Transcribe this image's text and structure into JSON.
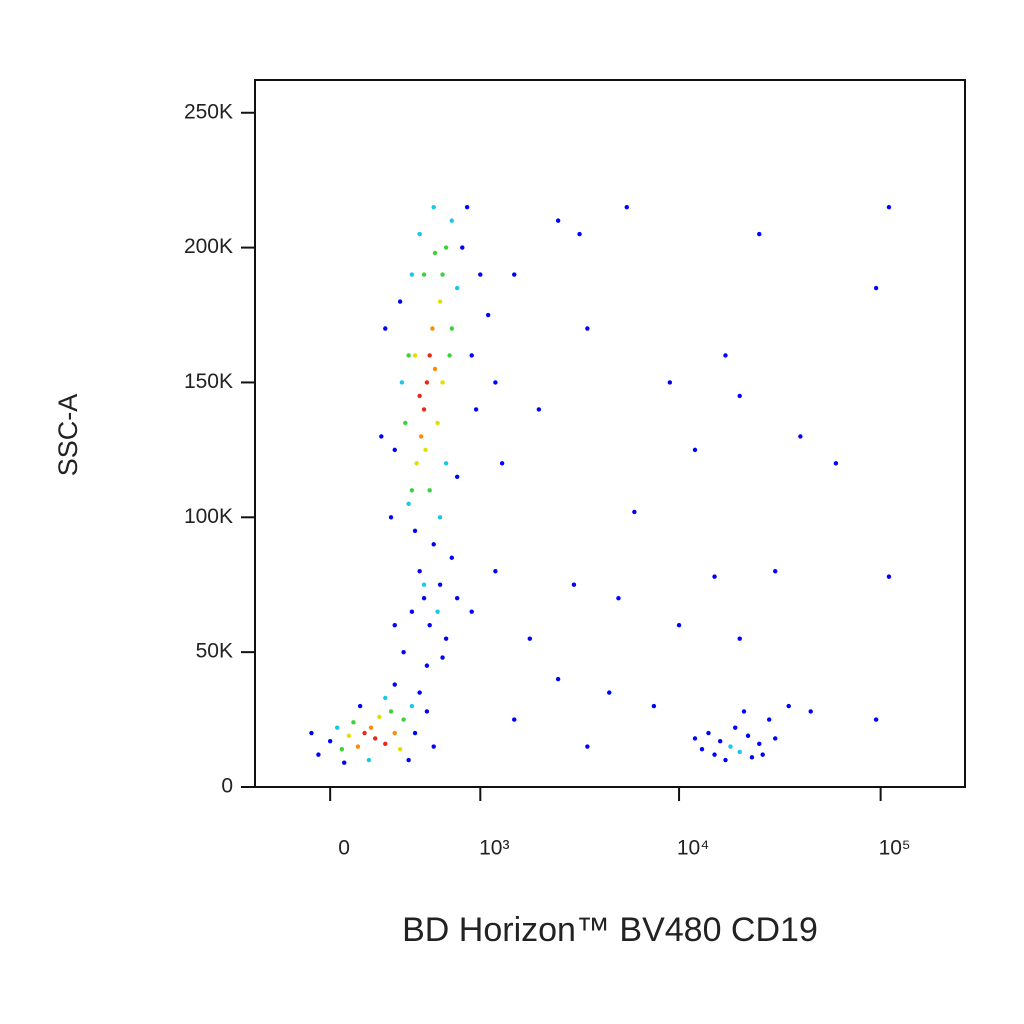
{
  "chart_data": {
    "type": "scatter",
    "x_label": "BD Horizon™ BV480 CD19",
    "y_label": "SSC-A",
    "xscale": "biexponential",
    "xlim": [
      -360,
      262144
    ],
    "ylim": [
      0,
      262144
    ],
    "xticks": [
      0,
      {
        "value": 1000,
        "label": "10³"
      },
      {
        "value": 10000,
        "label": "10⁴"
      },
      {
        "value": 100000,
        "label": "10⁵"
      }
    ],
    "yticks": [
      0,
      {
        "value": 50000,
        "label": "50K"
      },
      {
        "value": 100000,
        "label": "100K"
      },
      {
        "value": 150000,
        "label": "150K"
      },
      {
        "value": 200000,
        "label": "200K"
      },
      {
        "value": 250000,
        "label": "250K"
      }
    ],
    "x": [
      500,
      480,
      520,
      460,
      540,
      450,
      560,
      490,
      600,
      430,
      620,
      400,
      650,
      380,
      700,
      360,
      580,
      620,
      420,
      700,
      340,
      750,
      300,
      800,
      850,
      550,
      450,
      900,
      280,
      950,
      250,
      1000,
      650,
      520,
      330,
      1100,
      1200,
      230,
      600,
      750,
      480,
      560,
      400,
      680,
      380,
      480,
      520,
      450,
      600,
      400,
      550,
      650,
      350,
      700,
      500,
      420,
      580,
      480,
      750,
      300,
      620,
      900,
      1200,
      200,
      150,
      250,
      180,
      120,
      300,
      220,
      80,
      330,
      100,
      280,
      50,
      350,
      400,
      30,
      170,
      250,
      0,
      -50,
      420,
      450,
      130,
      -80,
      380,
      300,
      500,
      550,
      60,
      18000,
      20000,
      16000,
      22000,
      15000,
      25000,
      19000,
      13000,
      28000,
      17000,
      23000,
      14000,
      30000,
      21000,
      12000,
      35000,
      26000,
      2500,
      3200,
      5500,
      1500,
      3500,
      25000,
      110000,
      95000,
      17000,
      20000,
      12000,
      40000,
      60000,
      2000,
      1300,
      9000,
      6000,
      3000,
      5000,
      15000,
      30000,
      110000,
      2500,
      4500,
      7500,
      1500,
      3500,
      10000,
      45000,
      95000,
      1800,
      20000
    ],
    "values": [
      150000,
      140000,
      160000,
      130000,
      170000,
      145000,
      155000,
      125000,
      180000,
      120000,
      190000,
      110000,
      200000,
      105000,
      210000,
      135000,
      135000,
      150000,
      160000,
      170000,
      150000,
      185000,
      125000,
      200000,
      215000,
      215000,
      205000,
      160000,
      100000,
      140000,
      170000,
      190000,
      120000,
      110000,
      180000,
      175000,
      150000,
      130000,
      100000,
      115000,
      190000,
      198000,
      190000,
      160000,
      160000,
      70000,
      60000,
      80000,
      75000,
      65000,
      90000,
      55000,
      50000,
      85000,
      45000,
      95000,
      65000,
      75000,
      70000,
      60000,
      48000,
      65000,
      80000,
      18000,
      20000,
      16000,
      22000,
      15000,
      20000,
      26000,
      19000,
      14000,
      24000,
      28000,
      14000,
      25000,
      30000,
      22000,
      10000,
      33000,
      17000,
      12000,
      20000,
      35000,
      30000,
      20000,
      10000,
      38000,
      28000,
      15000,
      9000,
      15000,
      13000,
      17000,
      19000,
      12000,
      16000,
      22000,
      14000,
      25000,
      10000,
      11000,
      20000,
      18000,
      28000,
      18000,
      30000,
      12000,
      210000,
      205000,
      215000,
      190000,
      170000,
      205000,
      215000,
      185000,
      160000,
      145000,
      125000,
      130000,
      120000,
      140000,
      120000,
      150000,
      102000,
      75000,
      70000,
      78000,
      80000,
      78000,
      40000,
      35000,
      30000,
      25000,
      15000,
      60000,
      28000,
      25000,
      55000,
      55000
    ],
    "colors": [
      "#e8281a",
      "#e8281a",
      "#e8281a",
      "#ff8c00",
      "#ff8c00",
      "#e8281a",
      "#ff8c00",
      "#e0e000",
      "#e0e000",
      "#e0e000",
      "#3dd13d",
      "#3dd13d",
      "#3dd13d",
      "#18c8e8",
      "#18c8e8",
      "#3dd13d",
      "#e0e000",
      "#e0e000",
      "#e0e000",
      "#3dd13d",
      "#18c8e8",
      "#18c8e8",
      "#0000ff",
      "#0000ff",
      "#0000ff",
      "#18c8e8",
      "#18c8e8",
      "#0000ff",
      "#0000ff",
      "#0000ff",
      "#0000ff",
      "#0000ff",
      "#18c8e8",
      "#3dd13d",
      "#0000ff",
      "#0000ff",
      "#0000ff",
      "#0000ff",
      "#18c8e8",
      "#0000ff",
      "#3dd13d",
      "#3dd13d",
      "#18c8e8",
      "#3dd13d",
      "#3dd13d",
      "#0000ff",
      "#0000ff",
      "#0000ff",
      "#0000ff",
      "#0000ff",
      "#0000ff",
      "#0000ff",
      "#0000ff",
      "#0000ff",
      "#0000ff",
      "#0000ff",
      "#18c8e8",
      "#18c8e8",
      "#0000ff",
      "#0000ff",
      "#0000ff",
      "#0000ff",
      "#0000ff",
      "#e8281a",
      "#e8281a",
      "#e8281a",
      "#ff8c00",
      "#ff8c00",
      "#ff8c00",
      "#e0e000",
      "#e0e000",
      "#e0e000",
      "#3dd13d",
      "#3dd13d",
      "#3dd13d",
      "#3dd13d",
      "#18c8e8",
      "#18c8e8",
      "#18c8e8",
      "#18c8e8",
      "#0000ff",
      "#0000ff",
      "#0000ff",
      "#0000ff",
      "#0000ff",
      "#0000ff",
      "#0000ff",
      "#0000ff",
      "#0000ff",
      "#0000ff",
      "#0000ff",
      "#18c8e8",
      "#18c8e8",
      "#0000ff",
      "#0000ff",
      "#0000ff",
      "#0000ff",
      "#0000ff",
      "#0000ff",
      "#0000ff",
      "#0000ff",
      "#0000ff",
      "#0000ff",
      "#0000ff",
      "#0000ff",
      "#0000ff",
      "#0000ff",
      "#0000ff",
      "#0000ff",
      "#0000ff",
      "#0000ff",
      "#0000ff",
      "#0000ff",
      "#0000ff",
      "#0000ff",
      "#0000ff",
      "#0000ff",
      "#0000ff",
      "#0000ff",
      "#0000ff",
      "#0000ff",
      "#0000ff",
      "#0000ff",
      "#0000ff",
      "#0000ff",
      "#0000ff",
      "#0000ff",
      "#0000ff",
      "#0000ff",
      "#0000ff",
      "#0000ff",
      "#0000ff",
      "#0000ff",
      "#0000ff",
      "#0000ff",
      "#0000ff",
      "#0000ff",
      "#0000ff",
      "#0000ff",
      "#0000ff"
    ]
  }
}
